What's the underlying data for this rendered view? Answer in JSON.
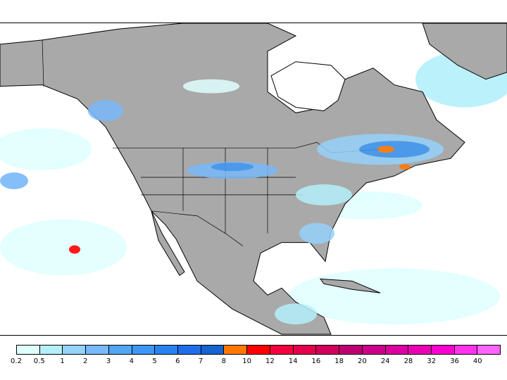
{
  "colorbar": {
    "colors": [
      "#e0ffff",
      "#b4f0fa",
      "#96d2fa",
      "#78b9fa",
      "#50a5f5",
      "#3c97f5",
      "#2883f0",
      "#1e6eeb",
      "#1464d2",
      "#ff7800",
      "#ff0000",
      "#f5003c",
      "#e6004b",
      "#d2005a",
      "#be0073",
      "#cd008c",
      "#dc00a0",
      "#eb00b4",
      "#fa00d2",
      "#ff32f0",
      "#ff64ff"
    ],
    "labels": [
      "0.2",
      "0.5",
      "1",
      "2",
      "3",
      "4",
      "5",
      "6",
      "7",
      "8",
      "10",
      "12",
      "14",
      "16",
      "18",
      "20",
      "24",
      "28",
      "32",
      "36",
      "40"
    ]
  },
  "map": {
    "land_color": "#a9a9a9",
    "ocean_color": "#ffffff"
  }
}
